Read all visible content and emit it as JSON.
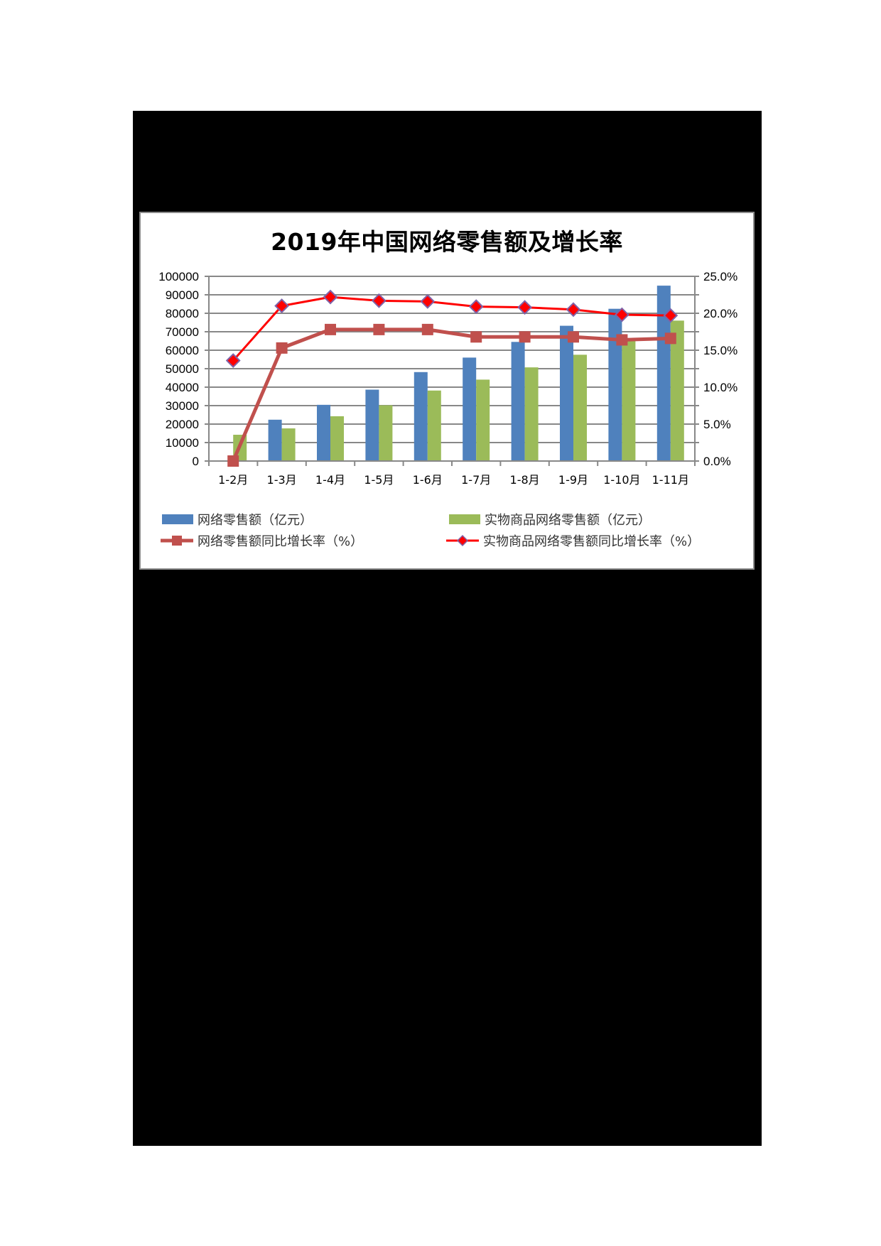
{
  "chart_data": {
    "type": "bar",
    "title": "2019年中国网络零售额及增长率",
    "categories": [
      "1-2月",
      "1-3月",
      "1-4月",
      "1-5月",
      "1-6月",
      "1-7月",
      "1-8月",
      "1-9月",
      "1-10月",
      "1-11月"
    ],
    "series": [
      {
        "name": "网络零售额（亿元）",
        "type": "bar",
        "axis": "left",
        "color": "#4f81bd",
        "values": [
          null,
          22379,
          30439,
          38641,
          48161,
          56007,
          64498,
          73238,
          82432,
          94958
        ]
      },
      {
        "name": "实物商品网络零售额（亿元）",
        "type": "bar",
        "axis": "left",
        "color": "#9bbb59",
        "values": [
          14233,
          17672,
          24247,
          30196,
          38165,
          44075,
          50711,
          57551,
          65080,
          76032
        ]
      },
      {
        "name": "网络零售额同比增长率（%）",
        "type": "line",
        "axis": "right",
        "color": "#c0504d",
        "marker": "square",
        "values": [
          0.0,
          15.3,
          17.8,
          17.8,
          17.8,
          16.8,
          16.8,
          16.8,
          16.4,
          16.6
        ]
      },
      {
        "name": "实物商品网络零售额同比增长率（%）",
        "type": "line",
        "axis": "right",
        "color": "#ff0000",
        "marker": "diamond",
        "values": [
          13.6,
          21.0,
          22.2,
          21.7,
          21.6,
          20.9,
          20.8,
          20.5,
          19.8,
          19.7
        ]
      }
    ],
    "xlabel": "",
    "ylabel": "",
    "ylim": [
      0,
      100000
    ],
    "y_ticks": [
      "0",
      "10000",
      "20000",
      "30000",
      "40000",
      "50000",
      "60000",
      "70000",
      "80000",
      "90000",
      "100000"
    ],
    "y2lim": [
      0,
      25
    ],
    "y2_ticks": [
      "0.0%",
      "5.0%",
      "10.0%",
      "15.0%",
      "20.0%",
      "25.0%"
    ],
    "grid": true,
    "legend_position": "bottom"
  },
  "legend": [
    {
      "label": "网络零售额（亿元）"
    },
    {
      "label": "实物商品网络零售额（亿元）"
    },
    {
      "label": "网络零售额同比增长率（%）"
    },
    {
      "label": "实物商品网络零售额同比增长率（%）"
    }
  ]
}
